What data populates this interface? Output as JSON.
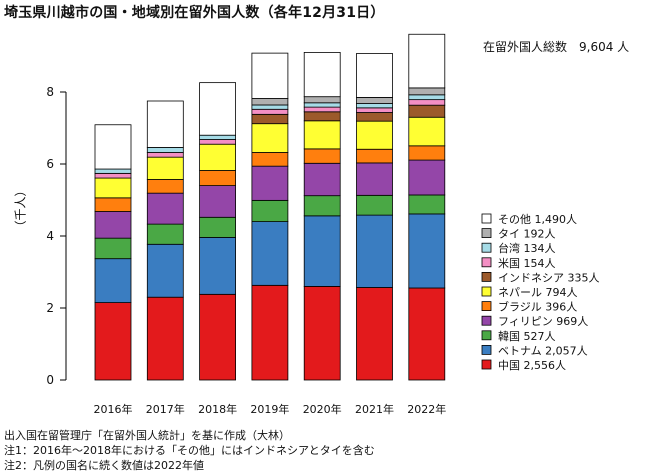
{
  "title": "埼玉県川越市の国・地域別在留外国人数（各年12月31日）",
  "total_label": "在留外国人総数　9,604 人",
  "notes": [
    "出入国在留管理庁「在留外国人統計」を基に作成（大林）",
    "注1：2016年～2018年における「その他」にはインドネシアとタイを含む",
    "注2：凡例の国名に続く数値は2022年値"
  ],
  "chart_data": {
    "type": "bar",
    "stacked": true,
    "ylabel": "（千人）",
    "ylim": [
      0,
      10
    ],
    "yticks": [
      0,
      2,
      4,
      6,
      8
    ],
    "categories": [
      "2016年",
      "2017年",
      "2018年",
      "2019年",
      "2020年",
      "2021年",
      "2022年"
    ],
    "series": [
      {
        "name": "中国",
        "legend": "中国 2,556人",
        "color": "#e31a1c",
        "values": [
          2.15,
          2.3,
          2.38,
          2.63,
          2.6,
          2.57,
          2.556
        ]
      },
      {
        "name": "ベトナム",
        "legend": "ベトナム 2,057人",
        "color": "#3a7dc1",
        "values": [
          1.22,
          1.47,
          1.58,
          1.77,
          1.96,
          2.01,
          2.057
        ]
      },
      {
        "name": "韓国",
        "legend": "韓国 527人",
        "color": "#4aa845",
        "values": [
          0.57,
          0.56,
          0.56,
          0.59,
          0.56,
          0.55,
          0.527
        ]
      },
      {
        "name": "フィリピン",
        "legend": "フィリピン 969人",
        "color": "#9446a8",
        "values": [
          0.74,
          0.86,
          0.88,
          0.95,
          0.9,
          0.9,
          0.969
        ]
      },
      {
        "name": "ブラジル",
        "legend": "ブラジル 396人",
        "color": "#ff7f0e",
        "values": [
          0.38,
          0.38,
          0.42,
          0.38,
          0.4,
          0.38,
          0.396
        ]
      },
      {
        "name": "ネパール",
        "legend": "ネパール 794人",
        "color": "#ffff33",
        "values": [
          0.55,
          0.62,
          0.73,
          0.8,
          0.78,
          0.78,
          0.794
        ]
      },
      {
        "name": "インドネシア",
        "legend": "インドネシア 335人",
        "color": "#9c5a2b",
        "values": [
          0,
          0,
          0,
          0.26,
          0.25,
          0.24,
          0.335
        ]
      },
      {
        "name": "米国",
        "legend": "米国 154人",
        "color": "#f48fc4",
        "values": [
          0.13,
          0.13,
          0.13,
          0.14,
          0.13,
          0.13,
          0.154
        ]
      },
      {
        "name": "台湾",
        "legend": "台湾 134人",
        "color": "#a6dce7",
        "values": [
          0.12,
          0.14,
          0.12,
          0.12,
          0.12,
          0.12,
          0.134
        ]
      },
      {
        "name": "タイ",
        "legend": "タイ 192人",
        "color": "#b0b0b0",
        "values": [
          0,
          0,
          0,
          0.18,
          0.17,
          0.17,
          0.192
        ]
      },
      {
        "name": "その他",
        "legend": "その他 1,490人",
        "color": "#ffffff",
        "values": [
          1.23,
          1.29,
          1.46,
          1.26,
          1.23,
          1.22,
          1.49
        ]
      }
    ]
  }
}
